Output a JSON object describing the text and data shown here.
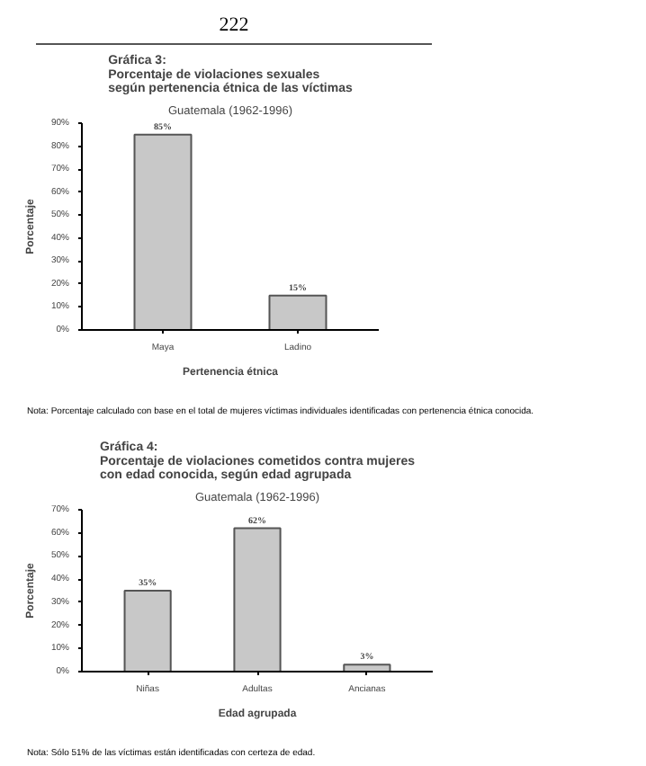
{
  "chart_data": [
    {
      "type": "bar",
      "title": "Gráfica 3:\nPorcentaje de violaciones sexuales\nsegún pertenencia étnica de las víctimas",
      "subtitle": "Guatemala (1962-1996)",
      "xlabel": "Pertenencia étnica",
      "ylabel": "Porcentaje",
      "categories": [
        "Maya",
        "Ladino"
      ],
      "values": [
        85,
        15
      ],
      "value_labels": [
        "85%",
        "15%"
      ],
      "color": "#c8c8c8",
      "ylim": [
        0,
        90
      ],
      "yticks": [
        {
          "value": 0,
          "label": "0%"
        },
        {
          "value": 10,
          "label": "10%"
        },
        {
          "value": 20,
          "label": "20%"
        },
        {
          "value": 30,
          "label": "30%"
        },
        {
          "value": 40,
          "label": "40%"
        },
        {
          "value": 50,
          "label": "50%"
        },
        {
          "value": 60,
          "label": "60%"
        },
        {
          "value": 70,
          "label": "70%"
        },
        {
          "value": 80,
          "label": "80%"
        },
        {
          "value": 90,
          "label": "90%"
        }
      ],
      "grid": false,
      "annotations": [
        "222",
        "Nota: Porcentaje calculado con base en el total de mujeres víctimas individuales identificadas con pertenencia étnica conocida."
      ]
    },
    {
      "type": "bar",
      "title": "Gráfica 4:\nPorcentaje de violaciones cometidos contra mujeres\ncon edad conocida, según edad agrupada",
      "subtitle": "Guatemala (1962-1996)",
      "xlabel": "Edad agrupada",
      "ylabel": "Porcentaje",
      "categories": [
        "Niñas",
        "Adultas",
        "Ancianas"
      ],
      "values": [
        35,
        62,
        3
      ],
      "value_labels": [
        "35%",
        "62%",
        "3%"
      ],
      "color": "#c8c8c8",
      "ylim": [
        0,
        70
      ],
      "yticks": [
        {
          "value": 0,
          "label": "0%"
        },
        {
          "value": 10,
          "label": "10%"
        },
        {
          "value": 20,
          "label": "20%"
        },
        {
          "value": 30,
          "label": "30%"
        },
        {
          "value": 40,
          "label": "40%"
        },
        {
          "value": 50,
          "label": "50%"
        },
        {
          "value": 60,
          "label": "60%"
        },
        {
          "value": 70,
          "label": "70%"
        }
      ],
      "grid": false,
      "annotations": [
        "Nota: Sólo 51% de las víctimas están identificadas con certeza de edad."
      ]
    }
  ]
}
